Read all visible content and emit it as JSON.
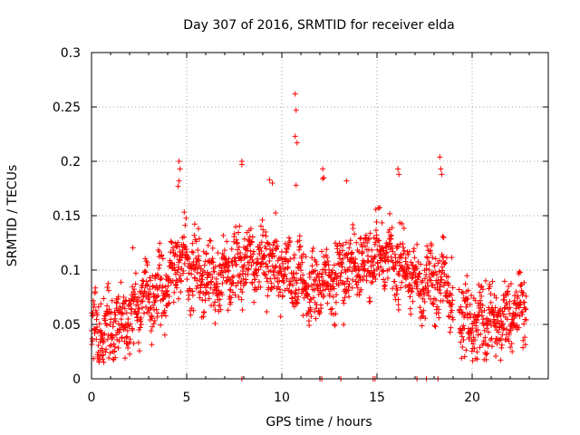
{
  "chart_data": {
    "type": "scatter",
    "title": "Day 307 of 2016, SRMTID for receiver elda",
    "xlabel": "GPS time / hours",
    "ylabel": "SRMTID / TECUs",
    "xlim": [
      0,
      24
    ],
    "ylim": [
      0,
      0.3
    ],
    "x_ticks": [
      0,
      5,
      10,
      15,
      20
    ],
    "x_tick_labels": [
      "0",
      "5",
      "10",
      "15",
      "20"
    ],
    "y_ticks": [
      0,
      0.05,
      0.1,
      0.15,
      0.2,
      0.25,
      0.3
    ],
    "y_tick_labels": [
      "0",
      "0.05",
      "0.1",
      "0.15",
      "0.2",
      "0.25",
      "0.3"
    ],
    "grid": true,
    "marker": "+",
    "color": "#ff0000",
    "trend_points": [
      [
        0.0,
        0.04
      ],
      [
        1.0,
        0.045
      ],
      [
        2.0,
        0.06
      ],
      [
        3.0,
        0.075
      ],
      [
        4.0,
        0.085
      ],
      [
        4.6,
        0.11
      ],
      [
        5.5,
        0.095
      ],
      [
        6.5,
        0.085
      ],
      [
        7.5,
        0.1
      ],
      [
        8.5,
        0.11
      ],
      [
        9.5,
        0.105
      ],
      [
        10.5,
        0.095
      ],
      [
        11.5,
        0.085
      ],
      [
        12.5,
        0.09
      ],
      [
        13.5,
        0.105
      ],
      [
        14.5,
        0.105
      ],
      [
        15.5,
        0.115
      ],
      [
        16.5,
        0.095
      ],
      [
        17.5,
        0.085
      ],
      [
        18.5,
        0.09
      ],
      [
        19.2,
        0.06
      ],
      [
        20.0,
        0.055
      ],
      [
        21.0,
        0.05
      ],
      [
        22.0,
        0.055
      ],
      [
        22.8,
        0.07
      ]
    ],
    "notable_points": [
      [
        10.7,
        0.262
      ],
      [
        10.75,
        0.247
      ],
      [
        10.7,
        0.223
      ],
      [
        10.8,
        0.217
      ],
      [
        10.75,
        0.178
      ],
      [
        4.6,
        0.2
      ],
      [
        4.65,
        0.193
      ],
      [
        4.6,
        0.182
      ],
      [
        4.55,
        0.177
      ],
      [
        7.9,
        0.2
      ],
      [
        7.9,
        0.197
      ],
      [
        18.3,
        0.204
      ],
      [
        18.35,
        0.193
      ],
      [
        18.4,
        0.188
      ],
      [
        12.15,
        0.193
      ],
      [
        12.2,
        0.185
      ],
      [
        12.15,
        0.184
      ],
      [
        16.1,
        0.193
      ],
      [
        16.15,
        0.188
      ],
      [
        13.4,
        0.182
      ],
      [
        9.5,
        0.18
      ],
      [
        9.35,
        0.183
      ]
    ],
    "zero_points_x": [
      7.9,
      12.0,
      12.1,
      13.1,
      14.8,
      14.9,
      17.1,
      17.6,
      18.2
    ],
    "gaps_hours": [
      [
        19.0,
        19.3
      ]
    ],
    "data_spread": 0.022
  }
}
